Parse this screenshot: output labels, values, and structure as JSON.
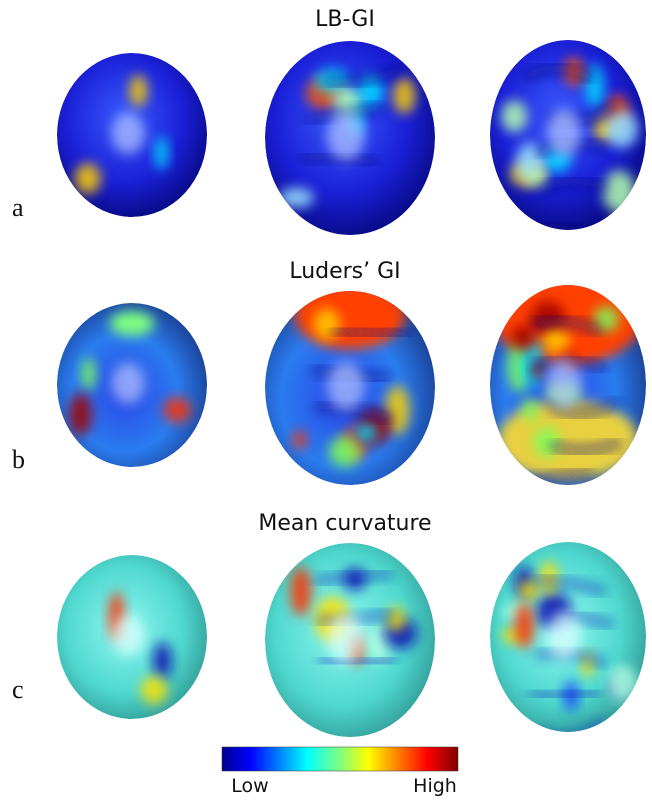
{
  "rows": [
    {
      "label": "a",
      "title": "LB-GI"
    },
    {
      "label": "b",
      "title": "Luders’ GI"
    },
    {
      "label": "c",
      "title": "Mean curvature"
    }
  ],
  "colorbar": {
    "low": "Low",
    "high": "High"
  }
}
